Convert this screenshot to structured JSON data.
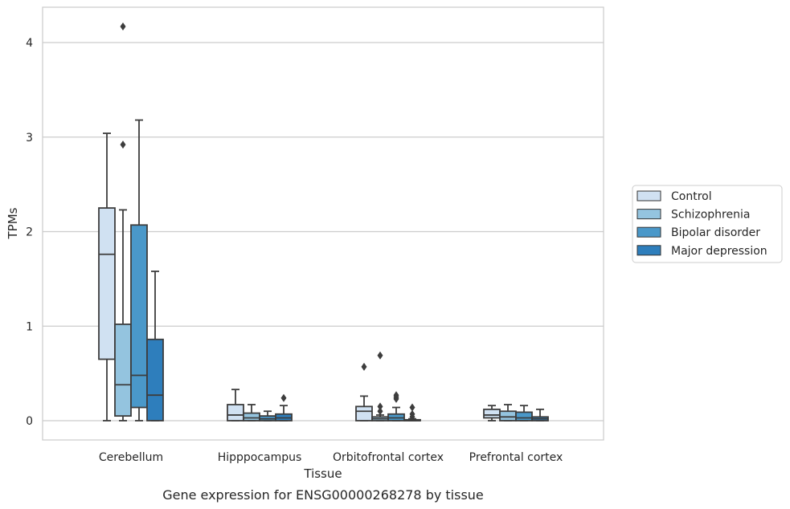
{
  "chart_data": {
    "type": "boxplot",
    "caption": "Gene expression for ENSG00000268278 by tissue",
    "xlabel": "Tissue",
    "ylabel": "TPMs",
    "ylim": [
      -0.2,
      4.38
    ],
    "yticks": [
      0,
      1,
      2,
      3,
      4
    ],
    "grid": "horizontal",
    "legend_position": "right",
    "categories": [
      "Cerebellum",
      "Hipppocampus",
      "Orbitofrontal cortex",
      "Prefrontal cortex"
    ],
    "series": [
      {
        "name": "Control",
        "color": "#d0e1f2",
        "boxes": [
          {
            "whislo": 0.0,
            "q1": 0.65,
            "med": 1.76,
            "q3": 2.25,
            "whishi": 3.04,
            "fliers": []
          },
          {
            "whislo": 0.0,
            "q1": 0.0,
            "med": 0.06,
            "q3": 0.17,
            "whishi": 0.33,
            "fliers": []
          },
          {
            "whislo": 0.0,
            "q1": 0.0,
            "med": 0.1,
            "q3": 0.15,
            "whishi": 0.26,
            "fliers": [
              0.57
            ]
          },
          {
            "whislo": 0.0,
            "q1": 0.03,
            "med": 0.06,
            "q3": 0.12,
            "whishi": 0.16,
            "fliers": []
          }
        ]
      },
      {
        "name": "Schizophrenia",
        "color": "#94c4df",
        "boxes": [
          {
            "whislo": 0.0,
            "q1": 0.05,
            "med": 0.38,
            "q3": 1.02,
            "whishi": 2.23,
            "fliers": [
              2.92,
              4.17
            ]
          },
          {
            "whislo": 0.0,
            "q1": 0.0,
            "med": 0.03,
            "q3": 0.08,
            "whishi": 0.17,
            "fliers": []
          },
          {
            "whislo": 0.0,
            "q1": 0.0,
            "med": 0.02,
            "q3": 0.04,
            "whishi": 0.06,
            "fliers": [
              0.1,
              0.15,
              0.69
            ]
          },
          {
            "whislo": 0.0,
            "q1": 0.0,
            "med": 0.04,
            "q3": 0.1,
            "whishi": 0.17,
            "fliers": []
          }
        ]
      },
      {
        "name": "Bipolar disorder",
        "color": "#4a98c9",
        "boxes": [
          {
            "whislo": 0.0,
            "q1": 0.14,
            "med": 0.48,
            "q3": 2.07,
            "whishi": 3.18,
            "fliers": []
          },
          {
            "whislo": 0.0,
            "q1": 0.0,
            "med": 0.02,
            "q3": 0.05,
            "whishi": 0.1,
            "fliers": []
          },
          {
            "whislo": 0.0,
            "q1": 0.0,
            "med": 0.03,
            "q3": 0.07,
            "whishi": 0.14,
            "fliers": [
              0.23,
              0.25,
              0.27
            ]
          },
          {
            "whislo": 0.0,
            "q1": 0.0,
            "med": 0.03,
            "q3": 0.09,
            "whishi": 0.16,
            "fliers": []
          }
        ]
      },
      {
        "name": "Major depression",
        "color": "#2e7ebc",
        "boxes": [
          {
            "whislo": 0.0,
            "q1": 0.0,
            "med": 0.27,
            "q3": 0.86,
            "whishi": 1.58,
            "fliers": []
          },
          {
            "whislo": 0.0,
            "q1": 0.0,
            "med": 0.03,
            "q3": 0.07,
            "whishi": 0.16,
            "fliers": [
              0.24
            ]
          },
          {
            "whislo": 0.0,
            "q1": 0.0,
            "med": 0.0,
            "q3": 0.01,
            "whishi": 0.02,
            "fliers": [
              0.04,
              0.07,
              0.14
            ]
          },
          {
            "whislo": 0.0,
            "q1": 0.0,
            "med": 0.02,
            "q3": 0.04,
            "whishi": 0.12,
            "fliers": []
          }
        ]
      }
    ]
  }
}
